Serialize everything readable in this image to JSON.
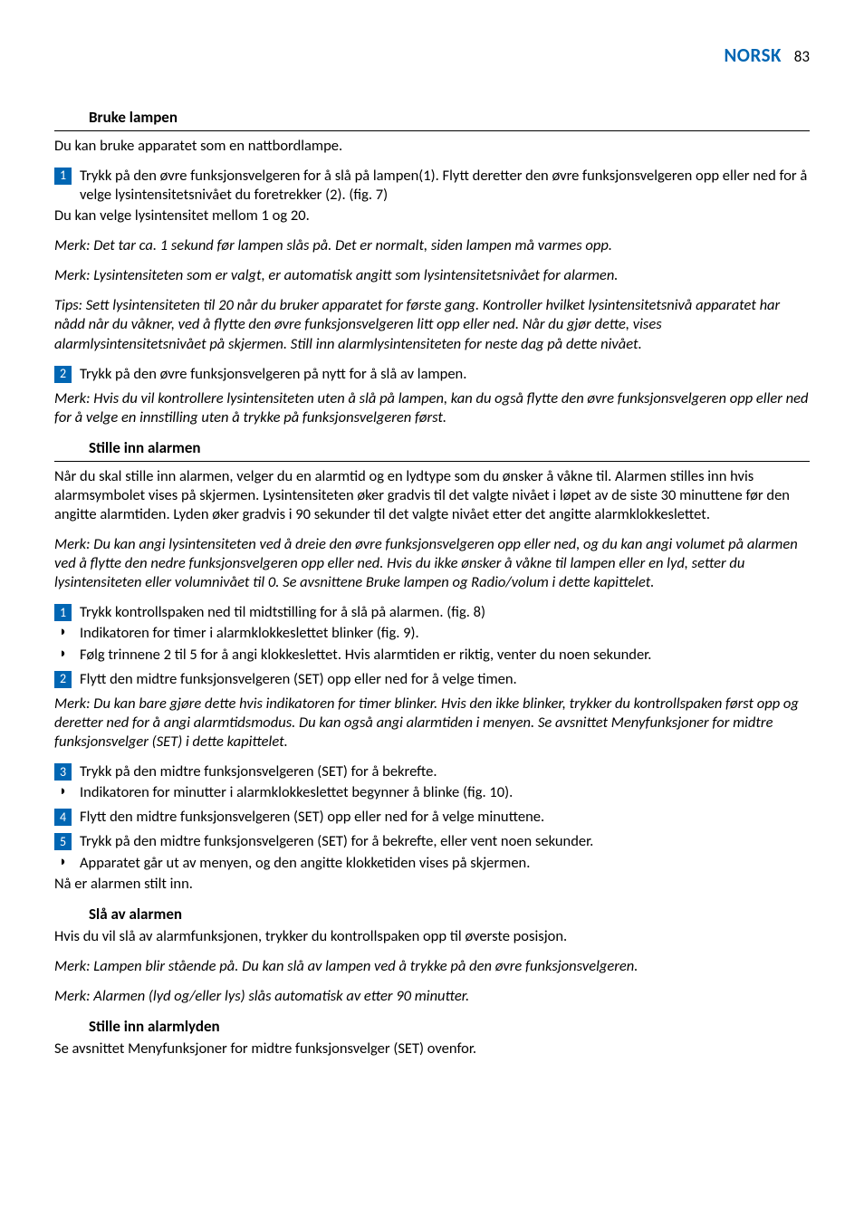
{
  "header": {
    "brand": "NORSK",
    "page_number": "83",
    "brand_color": "#0066b3"
  },
  "sections": [
    {
      "heading": "Bruke lampen",
      "blocks": [
        {
          "type": "para",
          "text": "Du kan bruke apparatet som en nattbordlampe."
        },
        {
          "type": "step",
          "num": "1",
          "text": "Trykk på den øvre funksjonsvelgeren for å slå på lampen(1). Flytt deretter den øvre funksjonsvelgeren opp eller ned for å velge lysintensitetsnivået du foretrekker (2).  (fig. 7)"
        },
        {
          "type": "plain",
          "text": "Du kan velge lysintensitet mellom 1 og 20."
        },
        {
          "type": "note",
          "text": "Merk: Det tar ca. 1 sekund før lampen slås på. Det er normalt, siden lampen må varmes opp."
        },
        {
          "type": "note",
          "text": "Merk: Lysintensiteten som er valgt, er automatisk angitt som lysintensitetsnivået for alarmen."
        },
        {
          "type": "note",
          "text": "Tips: Sett lysintensiteten til 20 når du bruker apparatet for første gang. Kontroller hvilket lysintensitetsnivå apparatet har nådd når du våkner, ved å flytte den øvre funksjonsvelgeren litt opp eller ned. Når du gjør dette, vises alarmlysintensitetsnivået på skjermen. Still inn alarmlysintensiteten for neste dag på dette nivået."
        },
        {
          "type": "step",
          "num": "2",
          "text": "Trykk på den øvre funksjonsvelgeren på nytt for å slå av lampen."
        },
        {
          "type": "gap-sm"
        },
        {
          "type": "note",
          "text": "Merk: Hvis du vil kontrollere lysintensiteten uten å slå på lampen, kan du også flytte den øvre funksjonsvelgeren opp eller ned for å velge en innstilling uten å trykke på funksjonsvelgeren først."
        }
      ]
    },
    {
      "heading": "Stille inn alarmen",
      "blocks": [
        {
          "type": "para",
          "text": "Når du skal stille inn alarmen, velger du en alarmtid og en lydtype som du ønsker å våkne til. Alarmen stilles inn hvis alarmsymbolet vises på skjermen. Lysintensiteten øker gradvis til det valgte nivået i løpet av de siste 30 minuttene før den angitte alarmtiden. Lyden øker gradvis i 90 sekunder til det valgte nivået etter det angitte alarmklokkeslettet."
        },
        {
          "type": "note",
          "text": "Merk: Du kan angi lysintensiteten ved å dreie den øvre funksjonsvelgeren opp eller ned, og du kan angi volumet på alarmen ved å flytte den nedre funksjonsvelgeren opp eller ned. Hvis du ikke ønsker å våkne til lampen eller en lyd, setter du lysintensiteten eller volumnivået til 0. Se avsnittene Bruke lampen og Radio/volum i dette kapittelet."
        },
        {
          "type": "step",
          "num": "1",
          "text": "Trykk kontrollspaken ned til midtstilling for å slå på alarmen.  (fig. 8)"
        },
        {
          "type": "bullet",
          "text": "Indikatoren for timer i alarmklokkeslettet blinker (fig. 9)."
        },
        {
          "type": "bullet",
          "text": "Følg trinnene 2 til 5 for å angi klokkeslettet. Hvis alarmtiden er riktig, venter du noen sekunder."
        },
        {
          "type": "gap-sm"
        },
        {
          "type": "step",
          "num": "2",
          "text": "Flytt den midtre funksjonsvelgeren (SET) opp eller ned for å velge timen."
        },
        {
          "type": "gap-sm"
        },
        {
          "type": "note",
          "text": "Merk: Du kan bare gjøre dette hvis indikatoren for timer blinker. Hvis den ikke blinker, trykker du kontrollspaken først opp og deretter ned for å angi alarmtidsmodus. Du kan også angi alarmtiden i menyen. Se avsnittet Menyfunksjoner for midtre funksjonsvelger (SET) i dette kapittelet."
        },
        {
          "type": "step",
          "num": "3",
          "text": "Trykk på den midtre funksjonsvelgeren (SET) for å bekrefte."
        },
        {
          "type": "bullet",
          "text": "Indikatoren for minutter i alarmklokkeslettet begynner å blinke (fig. 10)."
        },
        {
          "type": "gap-sm"
        },
        {
          "type": "step",
          "num": "4",
          "text": "Flytt den midtre funksjonsvelgeren (SET) opp eller ned for å velge minuttene."
        },
        {
          "type": "gap-sm"
        },
        {
          "type": "step",
          "num": "5",
          "text": "Trykk på den midtre funksjonsvelgeren (SET) for å bekrefte, eller vent noen sekunder."
        },
        {
          "type": "bullet",
          "text": "Apparatet går ut av menyen, og den angitte klokketiden vises på skjermen."
        },
        {
          "type": "plain",
          "text": "Nå er alarmen stilt inn."
        }
      ]
    },
    {
      "heading": "Slå av alarmen",
      "no_rule": true,
      "blocks": [
        {
          "type": "para",
          "text": "Hvis du vil slå av alarmfunksjonen, trykker du kontrollspaken opp til øverste posisjon."
        },
        {
          "type": "note",
          "text": "Merk: Lampen blir stående på. Du kan slå av lampen ved å trykke på den øvre funksjonsvelgeren."
        },
        {
          "type": "note",
          "text": "Merk: Alarmen (lyd og/eller lys) slås automatisk av etter 90 minutter."
        }
      ]
    },
    {
      "heading": "Stille inn alarmlyden",
      "no_rule": true,
      "blocks": [
        {
          "type": "para",
          "text": "Se avsnittet Menyfunksjoner for midtre funksjonsvelger (SET) ovenfor."
        }
      ]
    }
  ]
}
